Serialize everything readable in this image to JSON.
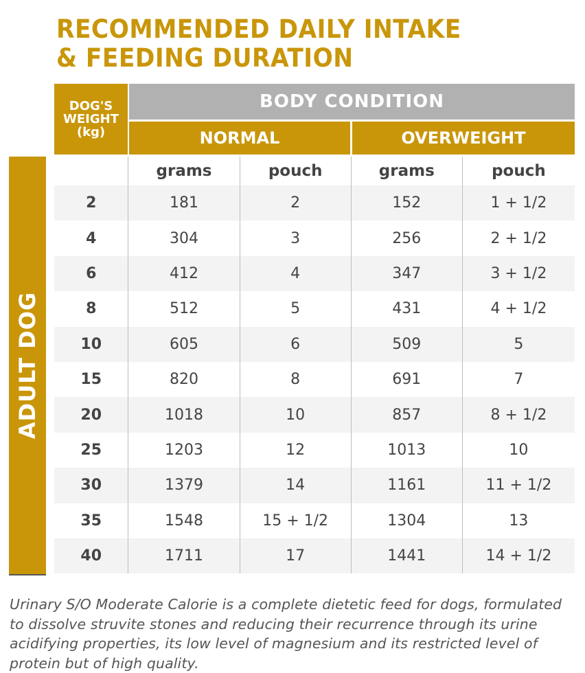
{
  "title": {
    "line1": "RECOMMENDED DAILY INTAKE",
    "line2": "& FEEDING DURATION"
  },
  "colors": {
    "accent": "#C9960A",
    "header_gray": "#B1B1B1",
    "row_alt": "#F3F3F3"
  },
  "header": {
    "weight_line1": "DOG'S",
    "weight_line2": "WEIGHT",
    "weight_line3": "(kg)",
    "body_condition": "BODY CONDITION",
    "normal": "NORMAL",
    "overweight": "OVERWEIGHT",
    "sub": [
      "",
      "grams",
      "pouch",
      "grams",
      "pouch"
    ]
  },
  "side_label": "ADULT DOG",
  "rows": [
    [
      "2",
      "181",
      "2",
      "152",
      "1 + 1/2"
    ],
    [
      "4",
      "304",
      "3",
      "256",
      "2 + 1/2"
    ],
    [
      "6",
      "412",
      "4",
      "347",
      "3 + 1/2"
    ],
    [
      "8",
      "512",
      "5",
      "431",
      "4 + 1/2"
    ],
    [
      "10",
      "605",
      "6",
      "509",
      "5"
    ],
    [
      "15",
      "820",
      "8",
      "691",
      "7"
    ],
    [
      "20",
      "1018",
      "10",
      "857",
      "8 + 1/2"
    ],
    [
      "25",
      "1203",
      "12",
      "1013",
      "10"
    ],
    [
      "30",
      "1379",
      "14",
      "1161",
      "11 + 1/2"
    ],
    [
      "35",
      "1548",
      "15 + 1/2",
      "1304",
      "13"
    ],
    [
      "40",
      "1711",
      "17",
      "1441",
      "14 + 1/2"
    ]
  ],
  "note": "Urinary S/O Moderate Calorie is a complete dietetic feed for dogs, formulated to dissolve struvite stones and reducing their recurrence through its urine acidifying properties, its low level of magnesium and its restricted level of protein but of high quality."
}
